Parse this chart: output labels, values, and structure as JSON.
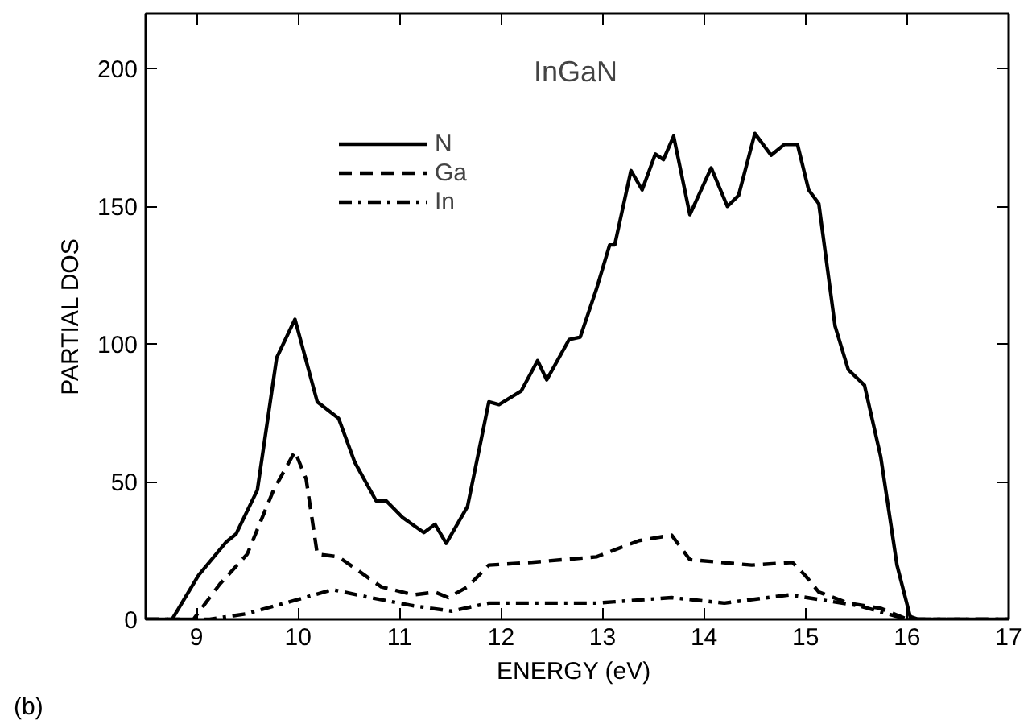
{
  "chart_data": {
    "type": "line",
    "title": "InGaN",
    "xlabel": "ENERGY  (eV)",
    "ylabel": "PARTIAL DOS",
    "annotations": [
      "(b)"
    ],
    "xlim": [
      8.5,
      17
    ],
    "ylim": [
      0,
      220
    ],
    "xticks": [
      9,
      10,
      11,
      12,
      13,
      14,
      15,
      16,
      17
    ],
    "yticks": [
      0,
      50,
      100,
      150,
      200
    ],
    "grid": false,
    "legend": "top left",
    "series": [
      {
        "name": "N",
        "color": "#000000",
        "line_style": "solid",
        "x": [
          8.5,
          8.76,
          9.02,
          9.29,
          9.39,
          9.6,
          9.79,
          9.97,
          10.19,
          10.4,
          10.56,
          10.77,
          10.87,
          11.03,
          11.24,
          11.35,
          11.46,
          11.67,
          11.88,
          11.98,
          12.2,
          12.36,
          12.45,
          12.67,
          12.78,
          12.94,
          13.07,
          13.12,
          13.28,
          13.39,
          13.52,
          13.6,
          13.7,
          13.86,
          14.07,
          14.23,
          14.34,
          14.5,
          14.66,
          14.79,
          14.92,
          15.03,
          15.13,
          15.29,
          15.42,
          15.58,
          15.74,
          15.9,
          16.03,
          16.11,
          17
        ],
        "values": [
          0,
          0,
          16,
          28,
          31,
          47,
          95,
          109,
          79,
          73,
          57,
          43,
          43,
          37,
          31.5,
          34.5,
          27.6,
          41,
          79,
          78,
          83,
          94,
          87,
          101.6,
          102.5,
          120,
          136,
          136,
          163,
          156,
          169,
          167,
          175.5,
          147,
          164,
          150,
          154,
          176.5,
          168.6,
          172.5,
          172.5,
          156,
          151,
          106.5,
          90.7,
          85,
          59,
          19.7,
          1,
          0,
          0
        ]
      },
      {
        "name": "Ga",
        "color": "#000000",
        "line_style": "dashed",
        "x": [
          8.5,
          8.97,
          9.23,
          9.5,
          9.76,
          9.97,
          10.08,
          10.19,
          10.4,
          10.82,
          11.14,
          11.35,
          11.48,
          11.67,
          11.88,
          12.3,
          12.94,
          13.36,
          13.68,
          13.86,
          14.47,
          14.87,
          15.0,
          15.13,
          15.42,
          15.74,
          16.0,
          17
        ],
        "values": [
          0,
          0,
          12.8,
          23.7,
          47,
          61,
          51,
          23.7,
          22.7,
          11.8,
          8.9,
          9.9,
          7.9,
          11.8,
          19.7,
          20.7,
          22.7,
          28.6,
          30.6,
          21.7,
          19.7,
          20.7,
          15.8,
          9.9,
          5.9,
          4,
          0,
          0
        ]
      },
      {
        "name": "In",
        "color": "#000000",
        "line_style": "dashdot",
        "x": [
          8.5,
          9.13,
          9.49,
          9.97,
          10.34,
          10.71,
          11.14,
          11.51,
          11.88,
          12.94,
          13.68,
          14.2,
          14.84,
          15.53,
          16.0,
          17
        ],
        "values": [
          0,
          0,
          2,
          6.9,
          10.8,
          7.9,
          4.9,
          3,
          5.9,
          5.9,
          7.9,
          5.9,
          8.9,
          4.9,
          0,
          0
        ]
      }
    ]
  }
}
